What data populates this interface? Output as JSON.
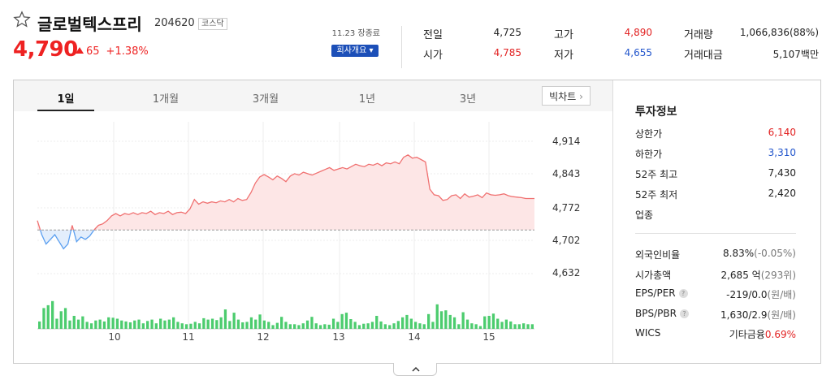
{
  "stock": {
    "name": "글로벌텍스프리",
    "code": "204620",
    "market": "코스닥",
    "price": "4,790",
    "change": "65",
    "change_pct": "+1.38%"
  },
  "summary": {
    "basis": "11.23 장종료",
    "company_button": "회사개요 ▾",
    "rows": [
      [
        {
          "label": "전일",
          "value": "4,725",
          "color": "#222222"
        },
        {
          "label": "고가",
          "value": "4,890",
          "color": "#e22222"
        },
        {
          "label": "거래량",
          "value": "1,066,836(88%)",
          "color": "#222222"
        }
      ],
      [
        {
          "label": "시가",
          "value": "4,785",
          "color": "#e22222"
        },
        {
          "label": "저가",
          "value": "4,655",
          "color": "#2255cc"
        },
        {
          "label": "거래대금",
          "value": "5,107백만",
          "color": "#222222"
        }
      ]
    ]
  },
  "tabs": [
    "1일",
    "1개월",
    "3개월",
    "1년",
    "3년"
  ],
  "big_chart_label": "빅차트",
  "chart_data": {
    "type": "area",
    "title": "",
    "y_ticks": [
      "4,914",
      "4,843",
      "4,772",
      "4,702",
      "4,632"
    ],
    "ylim": [
      4632,
      4914
    ],
    "baseline": 4725,
    "x_ticks": [
      "10",
      "11",
      "12",
      "13",
      "14",
      "15"
    ],
    "price_series": [
      4745,
      4715,
      4695,
      4705,
      4715,
      4700,
      4685,
      4695,
      4735,
      4700,
      4710,
      4705,
      4712,
      4725,
      4735,
      4738,
      4745,
      4755,
      4760,
      4755,
      4760,
      4758,
      4762,
      4758,
      4762,
      4760,
      4765,
      4758,
      4762,
      4760,
      4765,
      4758,
      4762,
      4763,
      4760,
      4770,
      4790,
      4780,
      4785,
      4782,
      4785,
      4783,
      4787,
      4785,
      4790,
      4785,
      4792,
      4788,
      4790,
      4805,
      4825,
      4838,
      4843,
      4838,
      4832,
      4840,
      4835,
      4828,
      4840,
      4845,
      4842,
      4848,
      4845,
      4842,
      4846,
      4850,
      4854,
      4858,
      4852,
      4855,
      4858,
      4855,
      4860,
      4865,
      4862,
      4860,
      4865,
      4863,
      4867,
      4862,
      4868,
      4866,
      4870,
      4866,
      4880,
      4885,
      4878,
      4880,
      4875,
      4870,
      4812,
      4800,
      4798,
      4788,
      4790,
      4798,
      4800,
      4792,
      4802,
      4795,
      4797,
      4800,
      4794,
      4804,
      4800,
      4799,
      4800,
      4802,
      4798,
      4796,
      4795,
      4794,
      4792,
      4792,
      4792
    ],
    "volume": [
      0.16,
      0.45,
      0.51,
      0.6,
      0.22,
      0.38,
      0.45,
      0.18,
      0.28,
      0.2,
      0.27,
      0.15,
      0.12,
      0.18,
      0.2,
      0.16,
      0.25,
      0.24,
      0.22,
      0.18,
      0.16,
      0.14,
      0.18,
      0.2,
      0.12,
      0.17,
      0.2,
      0.12,
      0.22,
      0.18,
      0.2,
      0.25,
      0.15,
      0.12,
      0.1,
      0.11,
      0.15,
      0.12,
      0.23,
      0.2,
      0.22,
      0.19,
      0.25,
      0.42,
      0.17,
      0.35,
      0.2,
      0.14,
      0.15,
      0.25,
      0.2,
      0.31,
      0.18,
      0.15,
      0.08,
      0.13,
      0.26,
      0.15,
      0.1,
      0.1,
      0.08,
      0.12,
      0.18,
      0.26,
      0.12,
      0.08,
      0.1,
      0.09,
      0.22,
      0.15,
      0.32,
      0.35,
      0.21,
      0.15,
      0.08,
      0.11,
      0.12,
      0.15,
      0.28,
      0.16,
      0.1,
      0.08,
      0.12,
      0.17,
      0.25,
      0.3,
      0.22,
      0.15,
      0.12,
      0.1,
      0.32,
      0.15,
      0.53,
      0.38,
      0.4,
      0.3,
      0.25,
      0.1,
      0.36,
      0.2,
      0.12,
      0.1,
      0.06,
      0.27,
      0.28,
      0.33,
      0.22,
      0.15,
      0.2,
      0.16,
      0.1,
      0.1,
      0.12,
      0.1,
      0.1
    ]
  },
  "investment": {
    "title": "투자정보",
    "group1": [
      {
        "label": "상한가",
        "value": "6,140",
        "color": "#e22222"
      },
      {
        "label": "하한가",
        "value": "3,310",
        "color": "#2255cc"
      },
      {
        "label": "52주 최고",
        "value": "7,430",
        "color": "#222222"
      },
      {
        "label": "52주 최저",
        "value": "2,420",
        "color": "#222222"
      },
      {
        "label": "업종",
        "value": "",
        "color": "#222222"
      }
    ],
    "group2": [
      {
        "label": "외국인비율",
        "value": "8.83%",
        "sub": "(-0.05%)",
        "sub_color": "#777777"
      },
      {
        "label": "시가총액",
        "value": "2,685 억",
        "sub": "(293위)",
        "sub_color": "#777777"
      },
      {
        "label": "EPS/PER",
        "value": "-219/0.0",
        "sub": "(원/배)",
        "sub_color": "#777777",
        "help": "?"
      },
      {
        "label": "BPS/PBR",
        "value": "1,630/2.9",
        "sub": "(원/배)",
        "sub_color": "#777777",
        "help": "?"
      },
      {
        "label": "WICS",
        "value": "기타금융",
        "sub": "0.69%",
        "sub_color": "#e22222"
      }
    ]
  },
  "colors": {
    "up": "#e22222",
    "down": "#2255cc",
    "line_up": "#f07070",
    "fill_up": "#fde6e6",
    "line_down": "#5b9ff0",
    "fill_down": "#e3eefc",
    "volume": "#4ccc6e"
  }
}
